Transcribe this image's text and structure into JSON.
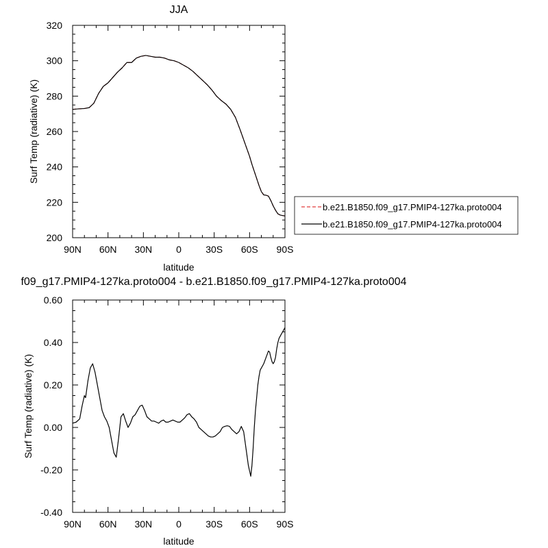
{
  "chart_data": [
    {
      "type": "line",
      "title": "JJA",
      "xlabel": "latitude",
      "ylabel": "Surf Temp (radiative) (K)",
      "x_ticks": [
        90,
        60,
        30,
        0,
        -30,
        -60,
        -90
      ],
      "x_tick_labels": [
        "90N",
        "60N",
        "30N",
        "0",
        "30S",
        "60S",
        "90S"
      ],
      "xlim": [
        90,
        -90
      ],
      "ylim": [
        200,
        320
      ],
      "y_ticks": [
        200,
        220,
        240,
        260,
        280,
        300,
        320
      ],
      "y_tick_labels": [
        "200",
        "220",
        "240",
        "260",
        "280",
        "300",
        "320"
      ],
      "x": [
        90,
        85,
        80,
        76,
        72,
        68,
        64,
        60,
        56,
        52,
        48,
        44,
        40,
        36,
        32,
        28,
        24,
        20,
        16,
        12,
        8,
        4,
        0,
        -4,
        -8,
        -12,
        -16,
        -20,
        -24,
        -28,
        -32,
        -36,
        -40,
        -44,
        -48,
        -52,
        -56,
        -60,
        -62,
        -64,
        -66,
        -68,
        -70,
        -72,
        -74,
        -76,
        -78,
        -80,
        -82,
        -84,
        -86,
        -88,
        -90
      ],
      "series": [
        {
          "name": "b.e21.B1850.f09_g17.PMIP4-127ka.proto004",
          "color": "#e03a3a",
          "dash": "dashed",
          "values": [
            272.5,
            272.8,
            273.0,
            273.5,
            276.0,
            281.5,
            285.5,
            287.5,
            290.5,
            293.5,
            296.0,
            299.0,
            299.0,
            301.5,
            302.5,
            303.0,
            302.5,
            302.0,
            302.0,
            301.5,
            300.5,
            300.0,
            299.0,
            297.5,
            296.0,
            294.0,
            291.5,
            289.0,
            286.5,
            283.5,
            280.0,
            277.5,
            275.5,
            272.5,
            268.0,
            261.0,
            253.5,
            246.0,
            241.5,
            237.5,
            233.5,
            229.5,
            226.0,
            224.2,
            224.0,
            223.5,
            221.0,
            218.0,
            215.5,
            213.5,
            212.8,
            212.5,
            212.3
          ]
        },
        {
          "name": "b.e21.B1850.f09_g17.PMIP4-127ka.proto004",
          "color": "#000000",
          "dash": "solid",
          "values": [
            272.5,
            272.8,
            273.0,
            273.5,
            276.0,
            281.5,
            285.5,
            287.5,
            290.5,
            293.5,
            296.0,
            299.0,
            299.0,
            301.5,
            302.5,
            303.0,
            302.5,
            302.0,
            302.0,
            301.5,
            300.5,
            300.0,
            299.0,
            297.5,
            296.0,
            294.0,
            291.5,
            289.0,
            286.5,
            283.5,
            280.0,
            277.5,
            275.5,
            272.5,
            268.0,
            261.0,
            253.5,
            246.0,
            241.5,
            237.5,
            233.5,
            229.5,
            226.0,
            224.2,
            224.0,
            223.5,
            221.0,
            218.0,
            215.5,
            213.5,
            212.8,
            212.5,
            212.3
          ]
        }
      ],
      "legend_position": "right"
    },
    {
      "type": "line",
      "title": "f09_g17.PMIP4-127ka.proto004 - b.e21.B1850.f09_g17.PMIP4-127ka.proto004",
      "xlabel": "latitude",
      "ylabel": "Surf Temp (radiative) (K)",
      "x_ticks": [
        90,
        60,
        30,
        0,
        -30,
        -60,
        -90
      ],
      "x_tick_labels": [
        "90N",
        "60N",
        "30N",
        "0",
        "30S",
        "60S",
        "90S"
      ],
      "xlim": [
        90,
        -90
      ],
      "ylim": [
        -0.4,
        0.6
      ],
      "y_ticks": [
        -0.4,
        -0.2,
        0.0,
        0.2,
        0.4,
        0.6
      ],
      "y_tick_labels": [
        "-0.40",
        "-0.20",
        "0.00",
        "0.20",
        "0.40",
        "0.60"
      ],
      "x": [
        90,
        87,
        84,
        82,
        80,
        79,
        77,
        75,
        73,
        71,
        69,
        67,
        65,
        63,
        61,
        59,
        57,
        55,
        53,
        51,
        49,
        47,
        45,
        43,
        41,
        39,
        37,
        35,
        33,
        31,
        29,
        27,
        25,
        23,
        21,
        19,
        17,
        15,
        13,
        11,
        9,
        7,
        5,
        3,
        1,
        -1,
        -3,
        -5,
        -7,
        -9,
        -11,
        -13,
        -15,
        -17,
        -19,
        -21,
        -23,
        -25,
        -27,
        -29,
        -31,
        -33,
        -35,
        -37,
        -39,
        -41,
        -43,
        -45,
        -47,
        -49,
        -51,
        -53,
        -55,
        -57,
        -59,
        -61,
        -62,
        -63,
        -64,
        -65,
        -66,
        -67,
        -68,
        -69,
        -70,
        -72,
        -74,
        -76,
        -77,
        -78,
        -79,
        -80,
        -81,
        -82,
        -83,
        -84,
        -85,
        -86,
        -87,
        -88,
        -89,
        -90
      ],
      "series": [
        {
          "name": "",
          "color": "#000000",
          "dash": "solid",
          "values": [
            0.02,
            0.025,
            0.04,
            0.1,
            0.15,
            0.14,
            0.22,
            0.28,
            0.3,
            0.26,
            0.2,
            0.14,
            0.08,
            0.05,
            0.03,
            0.0,
            -0.06,
            -0.12,
            -0.14,
            -0.05,
            0.05,
            0.065,
            0.03,
            0.0,
            0.02,
            0.05,
            0.06,
            0.08,
            0.1,
            0.105,
            0.08,
            0.05,
            0.04,
            0.03,
            0.03,
            0.025,
            0.02,
            0.03,
            0.035,
            0.025,
            0.025,
            0.03,
            0.035,
            0.03,
            0.025,
            0.025,
            0.035,
            0.045,
            0.06,
            0.065,
            0.05,
            0.04,
            0.025,
            0.0,
            -0.01,
            -0.02,
            -0.03,
            -0.04,
            -0.045,
            -0.045,
            -0.04,
            -0.03,
            -0.02,
            0.0,
            0.005,
            0.008,
            0.005,
            -0.01,
            -0.02,
            -0.03,
            -0.02,
            0.005,
            -0.02,
            -0.1,
            -0.18,
            -0.23,
            -0.18,
            -0.1,
            0.0,
            0.08,
            0.14,
            0.2,
            0.24,
            0.27,
            0.28,
            0.3,
            0.33,
            0.36,
            0.355,
            0.33,
            0.31,
            0.3,
            0.31,
            0.33,
            0.37,
            0.4,
            0.42,
            0.43,
            0.44,
            0.45,
            0.46,
            0.47
          ]
        }
      ]
    }
  ]
}
